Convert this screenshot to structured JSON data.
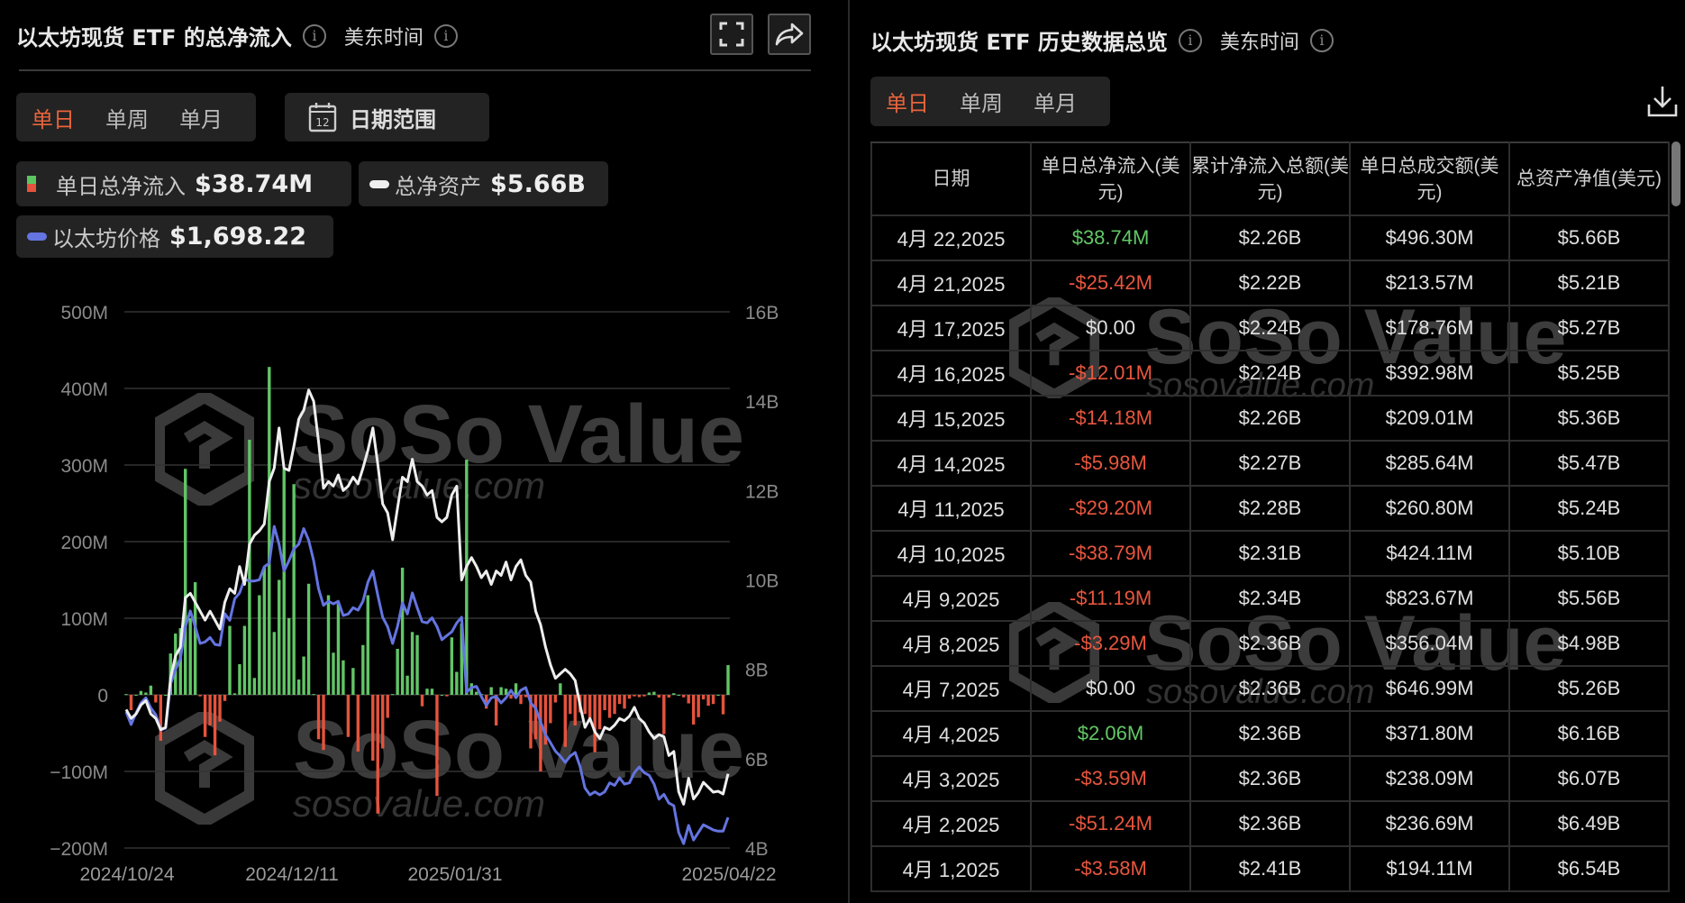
{
  "left_panel": {
    "title": "以太坊现货 ETF 的总净流入",
    "timezone": "美东时间",
    "period_tabs": [
      "单日",
      "单周",
      "单月"
    ],
    "active_tab": "单日",
    "date_range_label": "日期范围",
    "calendar_day": "12",
    "legend": [
      {
        "label": "单日总净流入",
        "value": "$38.74M",
        "icon": "green-red-square"
      },
      {
        "label": "总净资产",
        "value": "$5.66B",
        "icon": "white-line"
      },
      {
        "label": "以太坊价格",
        "value": "$1,698.22",
        "icon": "blue-line"
      }
    ],
    "icons": {
      "fullscreen": "fullscreen-icon",
      "share": "share-icon"
    }
  },
  "watermark": {
    "brand": "SoSo Value",
    "url": "sosovalue.com"
  },
  "chart_data": {
    "type": "bar+line",
    "x_tick_labels": [
      "2024/10/24",
      "2024/12/11",
      "2025/01/31",
      "2025/04/22"
    ],
    "left_axis": {
      "ticks": [
        "500M",
        "400M",
        "300M",
        "200M",
        "100M",
        "0",
        "−100M",
        "−200M"
      ],
      "ylim": [
        -200,
        500
      ],
      "unit": "M"
    },
    "right_axis": {
      "ticks": [
        "16B",
        "14B",
        "12B",
        "10B",
        "8B",
        "6B",
        "4B"
      ],
      "ylim": [
        4,
        16
      ],
      "unit": "B"
    },
    "grid": true,
    "colors": {
      "inflow_positive": "#62c566",
      "inflow_negative": "#e5533d",
      "net_assets": "#eeeeee",
      "eth_price": "#6474e0"
    },
    "series": [
      {
        "name": "单日总净流入",
        "type": "bar",
        "unit": "M",
        "values": [
          1,
          -20,
          0,
          5,
          3,
          12,
          -10,
          -60,
          0,
          54,
          80,
          87,
          295,
          100,
          147,
          -2,
          -55,
          -40,
          -79,
          -35,
          -8,
          90,
          2,
          40,
          90,
          333,
          22,
          130,
          167,
          428,
          82,
          150,
          295,
          100,
          275,
          20,
          50,
          145,
          1,
          -58,
          -72,
          130,
          55,
          119,
          45,
          -55,
          35,
          -74,
          65,
          130,
          -86,
          -155,
          -70,
          -30,
          1,
          60,
          166,
          25,
          82,
          78,
          -15,
          8,
          8,
          -132,
          0,
          -2,
          75,
          30,
          93,
          307,
          15,
          4,
          1,
          -18,
          10,
          -40,
          10,
          8,
          -5,
          15,
          -12,
          -3,
          -70,
          -58,
          -100,
          -65,
          -37,
          -10,
          15,
          -68,
          -25,
          -40,
          -23,
          -25,
          -30,
          -75,
          -45,
          -20,
          -30,
          -25,
          -12,
          -18,
          -5,
          -2,
          -3,
          -2,
          3,
          4,
          -3.58,
          -51.24,
          -3.59,
          2.06,
          0,
          -3.29,
          -11.19,
          -38.79,
          -29.2,
          -5.98,
          -14.18,
          -12.01,
          0,
          -25.42,
          38.74
        ]
      },
      {
        "name": "总净资产",
        "type": "line",
        "unit": "B",
        "values": [
          7.1,
          6.9,
          7.0,
          7.2,
          7.3,
          7.0,
          6.9,
          6.65,
          6.7,
          7.8,
          8.3,
          8.5,
          9.6,
          9.7,
          9.5,
          9.3,
          9.1,
          9.3,
          9.1,
          8.9,
          9.5,
          9.8,
          9.7,
          10.3,
          9.9,
          10.8,
          11.0,
          11.1,
          11.25,
          12.2,
          12.5,
          13.4,
          12.5,
          12.45,
          13.0,
          13.6,
          13.8,
          14.25,
          14.0,
          13.1,
          12.05,
          12.2,
          12.1,
          12.35,
          12.0,
          12.1,
          12.3,
          12.15,
          12.5,
          12.9,
          13.4,
          12.6,
          11.7,
          11.5,
          10.9,
          11.6,
          12.3,
          12.2,
          12.7,
          12.2,
          12.1,
          11.9,
          12.0,
          11.4,
          11.3,
          11.4,
          11.9,
          12.1,
          10.0,
          10.3,
          10.5,
          10.3,
          10.05,
          10.2,
          9.9,
          10.2,
          10.1,
          10.4,
          10.0,
          10.3,
          10.45,
          10.1,
          9.95,
          9.3,
          9.0,
          8.5,
          8.1,
          7.8,
          7.9,
          8.0,
          7.9,
          7.75,
          7.2,
          6.7,
          6.9,
          6.6,
          6.45,
          6.7,
          6.65,
          6.75,
          6.9,
          6.85,
          6.95,
          7.15,
          6.9,
          6.8,
          6.6,
          6.45,
          6.54,
          6.49,
          6.07,
          6.16,
          5.26,
          4.98,
          5.56,
          5.1,
          5.24,
          5.47,
          5.36,
          5.25,
          5.27,
          5.21,
          5.66
        ]
      },
      {
        "name": "以太坊价格",
        "type": "line",
        "unit": "USD",
        "values": [
          2529,
          2430,
          2520,
          2600,
          2640,
          2560,
          2507,
          2387,
          2400,
          2750,
          2862,
          2950,
          3200,
          3324,
          3200,
          3068,
          3080,
          3115,
          3060,
          3054,
          3303,
          3250,
          3420,
          3466,
          3575,
          3560,
          3560,
          3570,
          3672,
          3700,
          3990,
          3850,
          3639,
          3720,
          3814,
          3850,
          3972,
          3880,
          3720,
          3500,
          3368,
          3400,
          3380,
          3400,
          3288,
          3300,
          3350,
          3330,
          3400,
          3550,
          3639,
          3450,
          3274,
          3200,
          3068,
          3200,
          3388,
          3300,
          3466,
          3350,
          3240,
          3230,
          3270,
          3200,
          3098,
          3130,
          3160,
          3230,
          3274,
          2685,
          2720,
          2730,
          2650,
          2580,
          2640,
          2650,
          2600,
          2640,
          2700,
          2640,
          2700,
          2720,
          2600,
          2557,
          2450,
          2350,
          2287,
          2220,
          2180,
          2131,
          2180,
          2210,
          2100,
          1930,
          1876,
          1900,
          1876,
          1900,
          1970,
          1950,
          2010,
          1960,
          1970,
          2050,
          2095,
          2050,
          2030,
          1960,
          1842,
          1880,
          1811,
          1790,
          1580,
          1492,
          1635,
          1520,
          1580,
          1640,
          1620,
          1600,
          1590,
          1590,
          1698.22
        ]
      }
    ]
  },
  "right_panel": {
    "title": "以太坊现货 ETF 历史数据总览",
    "timezone": "美东时间",
    "period_tabs": [
      "单日",
      "单周",
      "单月"
    ],
    "active_tab": "单日",
    "icons": {
      "download": "download-icon"
    },
    "table": {
      "headers": [
        "日期",
        "单日总净流入(美元)",
        "累计净流入总额(美元)",
        "单日总成交额(美元)",
        "总资产净值(美元)"
      ],
      "rows": [
        [
          "4月 22,2025",
          "$38.74M",
          "$2.26B",
          "$496.30M",
          "$5.66B"
        ],
        [
          "4月 21,2025",
          "-$25.42M",
          "$2.22B",
          "$213.57M",
          "$5.21B"
        ],
        [
          "4月 17,2025",
          "$0.00",
          "$2.24B",
          "$178.76M",
          "$5.27B"
        ],
        [
          "4月 16,2025",
          "-$12.01M",
          "$2.24B",
          "$392.98M",
          "$5.25B"
        ],
        [
          "4月 15,2025",
          "-$14.18M",
          "$2.26B",
          "$209.01M",
          "$5.36B"
        ],
        [
          "4月 14,2025",
          "-$5.98M",
          "$2.27B",
          "$285.64M",
          "$5.47B"
        ],
        [
          "4月 11,2025",
          "-$29.20M",
          "$2.28B",
          "$260.80M",
          "$5.24B"
        ],
        [
          "4月 10,2025",
          "-$38.79M",
          "$2.31B",
          "$424.11M",
          "$5.10B"
        ],
        [
          "4月 9,2025",
          "-$11.19M",
          "$2.34B",
          "$823.67M",
          "$5.56B"
        ],
        [
          "4月 8,2025",
          "-$3.29M",
          "$2.36B",
          "$356.04M",
          "$4.98B"
        ],
        [
          "4月 7,2025",
          "$0.00",
          "$2.36B",
          "$646.99M",
          "$5.26B"
        ],
        [
          "4月 4,2025",
          "$2.06M",
          "$2.36B",
          "$371.80M",
          "$6.16B"
        ],
        [
          "4月 3,2025",
          "-$3.59M",
          "$2.36B",
          "$238.09M",
          "$6.07B"
        ],
        [
          "4月 2,2025",
          "-$51.24M",
          "$2.36B",
          "$236.69M",
          "$6.49B"
        ],
        [
          "4月 1,2025",
          "-$3.58M",
          "$2.41B",
          "$194.11M",
          "$6.54B"
        ]
      ]
    }
  }
}
